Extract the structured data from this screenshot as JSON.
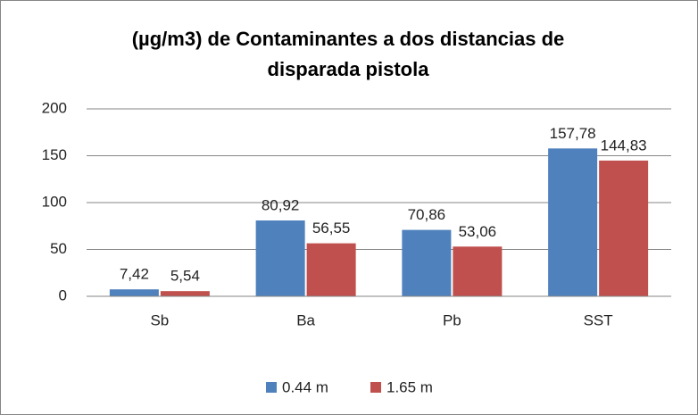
{
  "chart_data": {
    "type": "bar",
    "title": [
      "(µg/m3) de Contaminantes a dos distancias de",
      "disparada pistola"
    ],
    "categories": [
      "Sb",
      "Ba",
      "Pb",
      "SST"
    ],
    "series": [
      {
        "name": "0.44 m",
        "color": "#4f81bd",
        "values": [
          7.42,
          80.92,
          70.86,
          157.78
        ],
        "value_labels": [
          "7,42",
          "80,92",
          "70,86",
          "157,78"
        ]
      },
      {
        "name": "1.65 m",
        "color": "#c0504d",
        "values": [
          5.54,
          56.55,
          53.06,
          144.83
        ],
        "value_labels": [
          "5,54",
          "56,55",
          "53,06",
          "144,83"
        ]
      }
    ],
    "ylim": [
      0,
      200
    ],
    "yticks": [
      0,
      50,
      100,
      150,
      200
    ],
    "grid": true,
    "legend": "bottom"
  }
}
